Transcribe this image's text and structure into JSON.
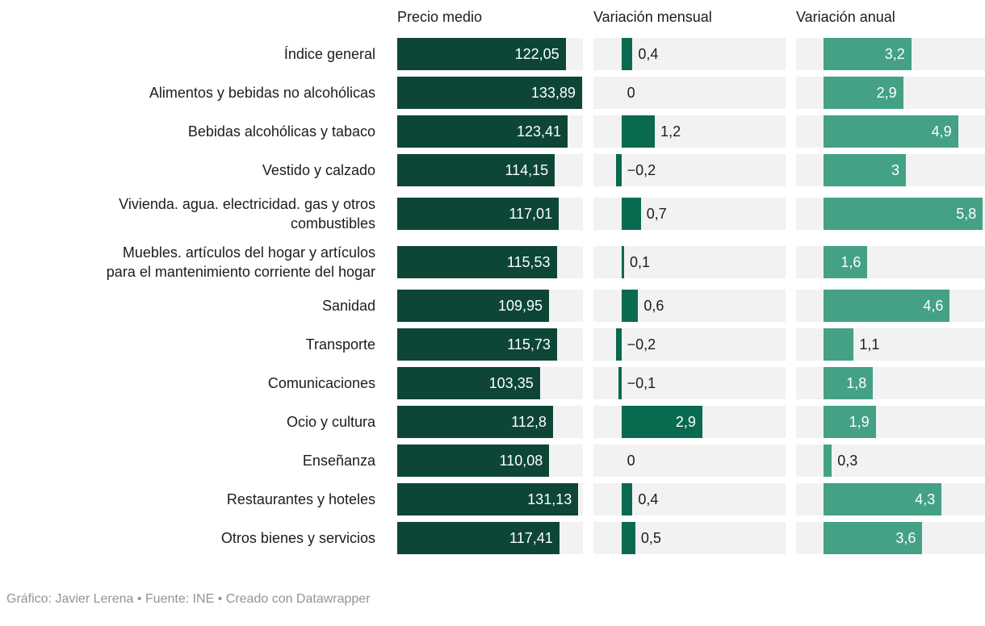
{
  "header": {
    "columns": [
      "Precio medio",
      "Variación mensual",
      "Variación anual"
    ]
  },
  "footer": {
    "text": "Gráfico: Javier Lerena • Fuente: INE • Creado con Datawrapper"
  },
  "colors": {
    "precio_bar": "#0d4636",
    "mensual_bar": "#0a6a50",
    "anual_bar": "#44a185",
    "track": "#f2f2f2",
    "text": "#1c1c1c",
    "value_inside": "#ffffff",
    "footer_text": "#949494"
  },
  "axes": {
    "precio": {
      "min": 0,
      "max": 134.5
    },
    "variation": {
      "min": -1,
      "max": 5.88
    },
    "inside_label_min_abs_value": 1.45
  },
  "rows": [
    {
      "label_lines": [
        "Índice general"
      ],
      "display": {
        "precio": "122,05",
        "mensual": "0,4",
        "anual": "3,2"
      }
    },
    {
      "label_lines": [
        "Alimentos y bebidas no alcohólicas"
      ],
      "display": {
        "precio": "133,89",
        "mensual": "0",
        "anual": "2,9"
      }
    },
    {
      "label_lines": [
        "Bebidas alcohólicas y tabaco"
      ],
      "display": {
        "precio": "123,41",
        "mensual": "1,2",
        "anual": "4,9"
      }
    },
    {
      "label_lines": [
        "Vestido y calzado"
      ],
      "display": {
        "precio": "114,15",
        "mensual": "−0,2",
        "anual": "3"
      }
    },
    {
      "label_lines": [
        "Vivienda. agua. electricidad. gas y otros",
        "combustibles"
      ],
      "display": {
        "precio": "117,01",
        "mensual": "0,7",
        "anual": "5,8"
      }
    },
    {
      "label_lines": [
        "Muebles. artículos del hogar y artículos",
        "para el mantenimiento corriente del hogar"
      ],
      "display": {
        "precio": "115,53",
        "mensual": "0,1",
        "anual": "1,6"
      }
    },
    {
      "label_lines": [
        "Sanidad"
      ],
      "display": {
        "precio": "109,95",
        "mensual": "0,6",
        "anual": "4,6"
      }
    },
    {
      "label_lines": [
        "Transporte"
      ],
      "display": {
        "precio": "115,73",
        "mensual": "−0,2",
        "anual": "1,1"
      }
    },
    {
      "label_lines": [
        "Comunicaciones"
      ],
      "display": {
        "precio": "103,35",
        "mensual": "−0,1",
        "anual": "1,8"
      }
    },
    {
      "label_lines": [
        "Ocio y cultura"
      ],
      "display": {
        "precio": "112,8",
        "mensual": "2,9",
        "anual": "1,9"
      }
    },
    {
      "label_lines": [
        "Enseñanza"
      ],
      "display": {
        "precio": "110,08",
        "mensual": "0",
        "anual": "0,3"
      }
    },
    {
      "label_lines": [
        "Restaurantes y hoteles"
      ],
      "display": {
        "precio": "131,13",
        "mensual": "0,4",
        "anual": "4,3"
      }
    },
    {
      "label_lines": [
        "Otros bienes y servicios"
      ],
      "display": {
        "precio": "117,41",
        "mensual": "0,5",
        "anual": "3,6"
      }
    }
  ],
  "chart_data": {
    "type": "bar",
    "title": "",
    "layout": "split-bars table, one bar column per measure, horizontal bars",
    "columns": [
      "Precio medio",
      "Variación mensual",
      "Variación anual"
    ],
    "categories": [
      "Índice general",
      "Alimentos y bebidas no alcohólicas",
      "Bebidas alcohólicas y tabaco",
      "Vestido y calzado",
      "Vivienda. agua. electricidad. gas y otros combustibles",
      "Muebles. artículos del hogar y artículos para el mantenimiento corriente del hogar",
      "Sanidad",
      "Transporte",
      "Comunicaciones",
      "Ocio y cultura",
      "Enseñanza",
      "Restaurantes y hoteles",
      "Otros bienes y servicios"
    ],
    "series": [
      {
        "name": "Precio medio",
        "values": [
          122.05,
          133.89,
          123.41,
          114.15,
          117.01,
          115.53,
          109.95,
          115.73,
          103.35,
          112.8,
          110.08,
          131.13,
          117.41
        ]
      },
      {
        "name": "Variación mensual",
        "values": [
          0.4,
          0,
          1.2,
          -0.2,
          0.7,
          0.1,
          0.6,
          -0.2,
          -0.1,
          2.9,
          0,
          0.4,
          0.5
        ]
      },
      {
        "name": "Variación anual",
        "values": [
          3.2,
          2.9,
          4.9,
          3,
          5.8,
          1.6,
          4.6,
          1.1,
          1.8,
          1.9,
          0.3,
          4.3,
          3.6
        ]
      }
    ],
    "axis_ranges": {
      "precio": [
        0,
        134.5
      ],
      "variacion": [
        -1,
        5.88
      ]
    },
    "value_format": "decimal comma (es-ES)",
    "legend": "none",
    "grid": "off"
  }
}
